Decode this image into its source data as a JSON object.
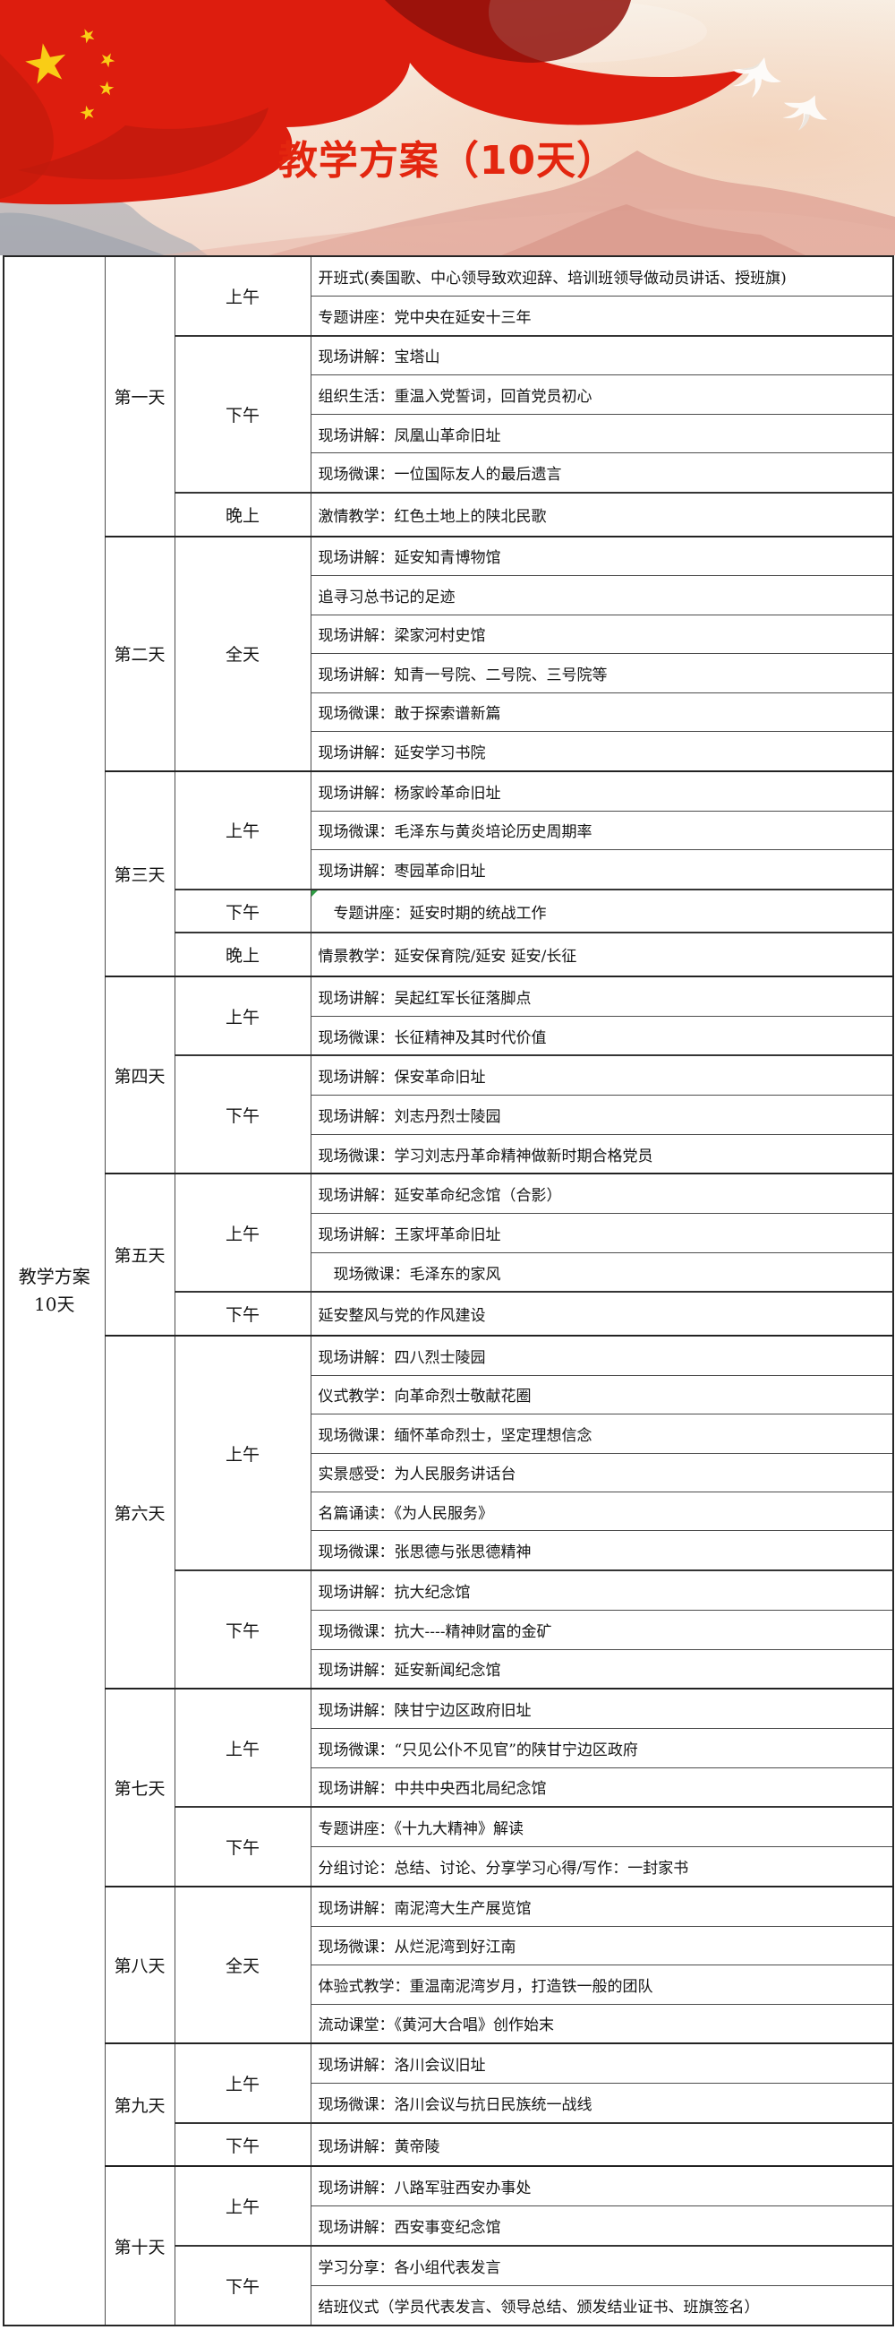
{
  "header": {
    "title": "教学方案（10天）",
    "title_color": "#e3260f",
    "art": {
      "flag_icon": "china-red-flag",
      "star_color": "#f9cd16",
      "doves_icon": "white-doves",
      "palette": {
        "flag_red": "#dd1d0e",
        "flag_dark_red": "#90100a",
        "mountain_pink": "#d78e84",
        "mountain_light_pink": "#e7b3a6",
        "mountain_gray": "#93a0ad",
        "bg_top": "#f8efe4",
        "bg_bottom": "#f2d8cb"
      }
    }
  },
  "table": {
    "plan_label": {
      "line1": "教学方案",
      "line2": "10天"
    },
    "days": [
      {
        "label": "第一天",
        "sessions": [
          {
            "time": "上午",
            "activities": [
              "开班式(奏国歌、中心领导致欢迎辞、培训班领导做动员讲话、授班旗)",
              "专题讲座：党中央在延安十三年"
            ]
          },
          {
            "time": "下午",
            "activities": [
              "现场讲解：宝塔山",
              "组织生活：重温入党誓词，回首党员初心",
              "现场讲解：凤凰山革命旧址",
              "现场微课：一位国际友人的最后遗言"
            ]
          },
          {
            "time": "晚上",
            "activities": [
              "激情教学：红色土地上的陕北民歌"
            ]
          }
        ]
      },
      {
        "label": "第二天",
        "sessions": [
          {
            "time": "全天",
            "activities": [
              "现场讲解：延安知青博物馆",
              "追寻习总书记的足迹",
              "现场讲解：梁家河村史馆",
              "现场讲解：知青一号院、二号院、三号院等",
              "现场微课：敢于探索谱新篇",
              "现场讲解：延安学习书院"
            ]
          }
        ]
      },
      {
        "label": "第三天",
        "sessions": [
          {
            "time": "上午",
            "activities": [
              "现场讲解：杨家岭革命旧址",
              "现场微课：毛泽东与黄炎培论历史周期率",
              "现场讲解：枣园革命旧址"
            ]
          },
          {
            "time": "下午",
            "activities": [
              {
                "text": "　专题讲座：延安时期的统战工作",
                "marker": true
              }
            ]
          },
          {
            "time": "晚上",
            "activities": [
              "情景教学：延安保育院/延安 延安/长征"
            ]
          }
        ]
      },
      {
        "label": "第四天",
        "sessions": [
          {
            "time": "上午",
            "activities": [
              "现场讲解：吴起红军长征落脚点",
              "现场微课：长征精神及其时代价值"
            ]
          },
          {
            "time": "下午",
            "activities": [
              "现场讲解：保安革命旧址",
              "现场讲解：刘志丹烈士陵园",
              "现场微课：学习刘志丹革命精神做新时期合格党员"
            ]
          }
        ]
      },
      {
        "label": "第五天",
        "sessions": [
          {
            "time": "上午",
            "activities": [
              "现场讲解：延安革命纪念馆（合影）",
              "现场讲解：王家坪革命旧址",
              "　现场微课：毛泽东的家风"
            ]
          },
          {
            "time": "下午",
            "activities": [
              "延安整风与党的作风建设"
            ]
          }
        ]
      },
      {
        "label": "第六天",
        "sessions": [
          {
            "time": "上午",
            "activities": [
              "现场讲解：四八烈士陵园",
              "仪式教学：向革命烈士敬献花圈",
              "现场微课：缅怀革命烈士，坚定理想信念",
              "实景感受：为人民服务讲话台",
              "名篇诵读：《为人民服务》",
              "现场微课：张思德与张思德精神"
            ]
          },
          {
            "time": "下午",
            "activities": [
              "现场讲解：抗大纪念馆",
              "现场微课：抗大----精神财富的金矿",
              "现场讲解：延安新闻纪念馆"
            ]
          }
        ]
      },
      {
        "label": "第七天",
        "sessions": [
          {
            "time": "上午",
            "activities": [
              "现场讲解：陕甘宁边区政府旧址",
              "现场微课：“只见公仆不见官”的陕甘宁边区政府",
              "现场讲解：中共中央西北局纪念馆"
            ]
          },
          {
            "time": "下午",
            "activities": [
              "专题讲座：《十九大精神》解读",
              "分组讨论：总结、讨论、分享学习心得/写作：一封家书"
            ]
          }
        ]
      },
      {
        "label": "第八天",
        "sessions": [
          {
            "time": "全天",
            "activities": [
              "现场讲解：南泥湾大生产展览馆",
              "现场微课：从烂泥湾到好江南",
              "体验式教学：重温南泥湾岁月，打造铁一般的团队",
              "流动课堂：《黄河大合唱》创作始末"
            ]
          }
        ]
      },
      {
        "label": "第九天",
        "sessions": [
          {
            "time": "上午",
            "activities": [
              "现场讲解：洛川会议旧址",
              "现场微课：洛川会议与抗日民族统一战线"
            ]
          },
          {
            "time": "下午",
            "activities": [
              "现场讲解：黄帝陵"
            ]
          }
        ]
      },
      {
        "label": "第十天",
        "sessions": [
          {
            "time": "上午",
            "activities": [
              "现场讲解：八路军驻西安办事处",
              "现场讲解：西安事变纪念馆"
            ]
          },
          {
            "time": "下午",
            "activities": [
              "学习分享：各小组代表发言",
              "结班仪式（学员代表发言、领导总结、颁发结业证书、班旗签名）"
            ]
          }
        ]
      }
    ]
  }
}
